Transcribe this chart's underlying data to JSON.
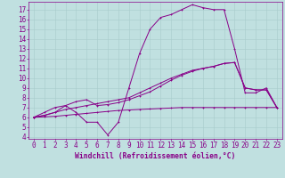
{
  "xlabel": "Windchill (Refroidissement éolien,°C)",
  "xlim": [
    -0.5,
    23.5
  ],
  "ylim": [
    3.8,
    17.8
  ],
  "yticks": [
    4,
    5,
    6,
    7,
    8,
    9,
    10,
    11,
    12,
    13,
    14,
    15,
    16,
    17
  ],
  "xticks": [
    0,
    1,
    2,
    3,
    4,
    5,
    6,
    7,
    8,
    9,
    10,
    11,
    12,
    13,
    14,
    15,
    16,
    17,
    18,
    19,
    20,
    21,
    22,
    23
  ],
  "bg_color": "#c0e0e0",
  "grid_color": "#a8cccc",
  "line_color": "#880088",
  "line1_x": [
    0,
    1,
    2,
    3,
    4,
    5,
    6,
    7,
    8,
    9,
    10,
    11,
    12,
    13,
    14,
    15,
    16,
    17,
    18,
    19,
    20,
    21,
    22,
    23
  ],
  "line1_y": [
    6.0,
    6.5,
    7.0,
    7.2,
    6.5,
    5.5,
    5.5,
    4.2,
    5.5,
    9.0,
    12.5,
    15.0,
    16.2,
    16.5,
    17.0,
    17.5,
    17.2,
    17.0,
    17.0,
    13.0,
    8.5,
    8.5,
    9.0,
    7.0
  ],
  "line2_x": [
    0,
    1,
    2,
    3,
    4,
    5,
    6,
    7,
    8,
    9,
    10,
    11,
    12,
    13,
    14,
    15,
    16,
    17,
    18,
    19,
    20,
    21,
    22,
    23
  ],
  "line2_y": [
    6.0,
    6.2,
    6.5,
    6.8,
    7.0,
    7.2,
    7.4,
    7.6,
    7.8,
    8.0,
    8.5,
    9.0,
    9.5,
    10.0,
    10.4,
    10.8,
    11.0,
    11.2,
    11.5,
    11.6,
    9.0,
    8.8,
    8.8,
    7.0
  ],
  "line3_x": [
    0,
    1,
    2,
    3,
    4,
    5,
    6,
    7,
    8,
    9,
    10,
    11,
    12,
    13,
    14,
    15,
    16,
    17,
    18,
    19,
    20,
    21,
    22,
    23
  ],
  "line3_y": [
    6.0,
    6.05,
    6.1,
    6.2,
    6.3,
    6.4,
    6.5,
    6.6,
    6.7,
    6.75,
    6.8,
    6.85,
    6.9,
    6.95,
    7.0,
    7.0,
    7.0,
    7.0,
    7.0,
    7.0,
    7.0,
    7.0,
    7.0,
    7.0
  ],
  "line4_x": [
    0,
    1,
    2,
    3,
    4,
    5,
    6,
    7,
    8,
    9,
    10,
    11,
    12,
    13,
    14,
    15,
    16,
    17,
    18,
    19,
    20,
    21,
    22,
    23
  ],
  "line4_y": [
    6.0,
    6.2,
    6.5,
    7.2,
    7.6,
    7.8,
    7.2,
    7.3,
    7.5,
    7.8,
    8.2,
    8.6,
    9.2,
    9.8,
    10.3,
    10.7,
    11.0,
    11.2,
    11.5,
    11.6,
    9.0,
    8.8,
    8.8,
    7.0
  ],
  "tick_fontsize": 5.5,
  "xlabel_fontsize": 5.8,
  "markersize": 2.0,
  "linewidth": 0.7
}
